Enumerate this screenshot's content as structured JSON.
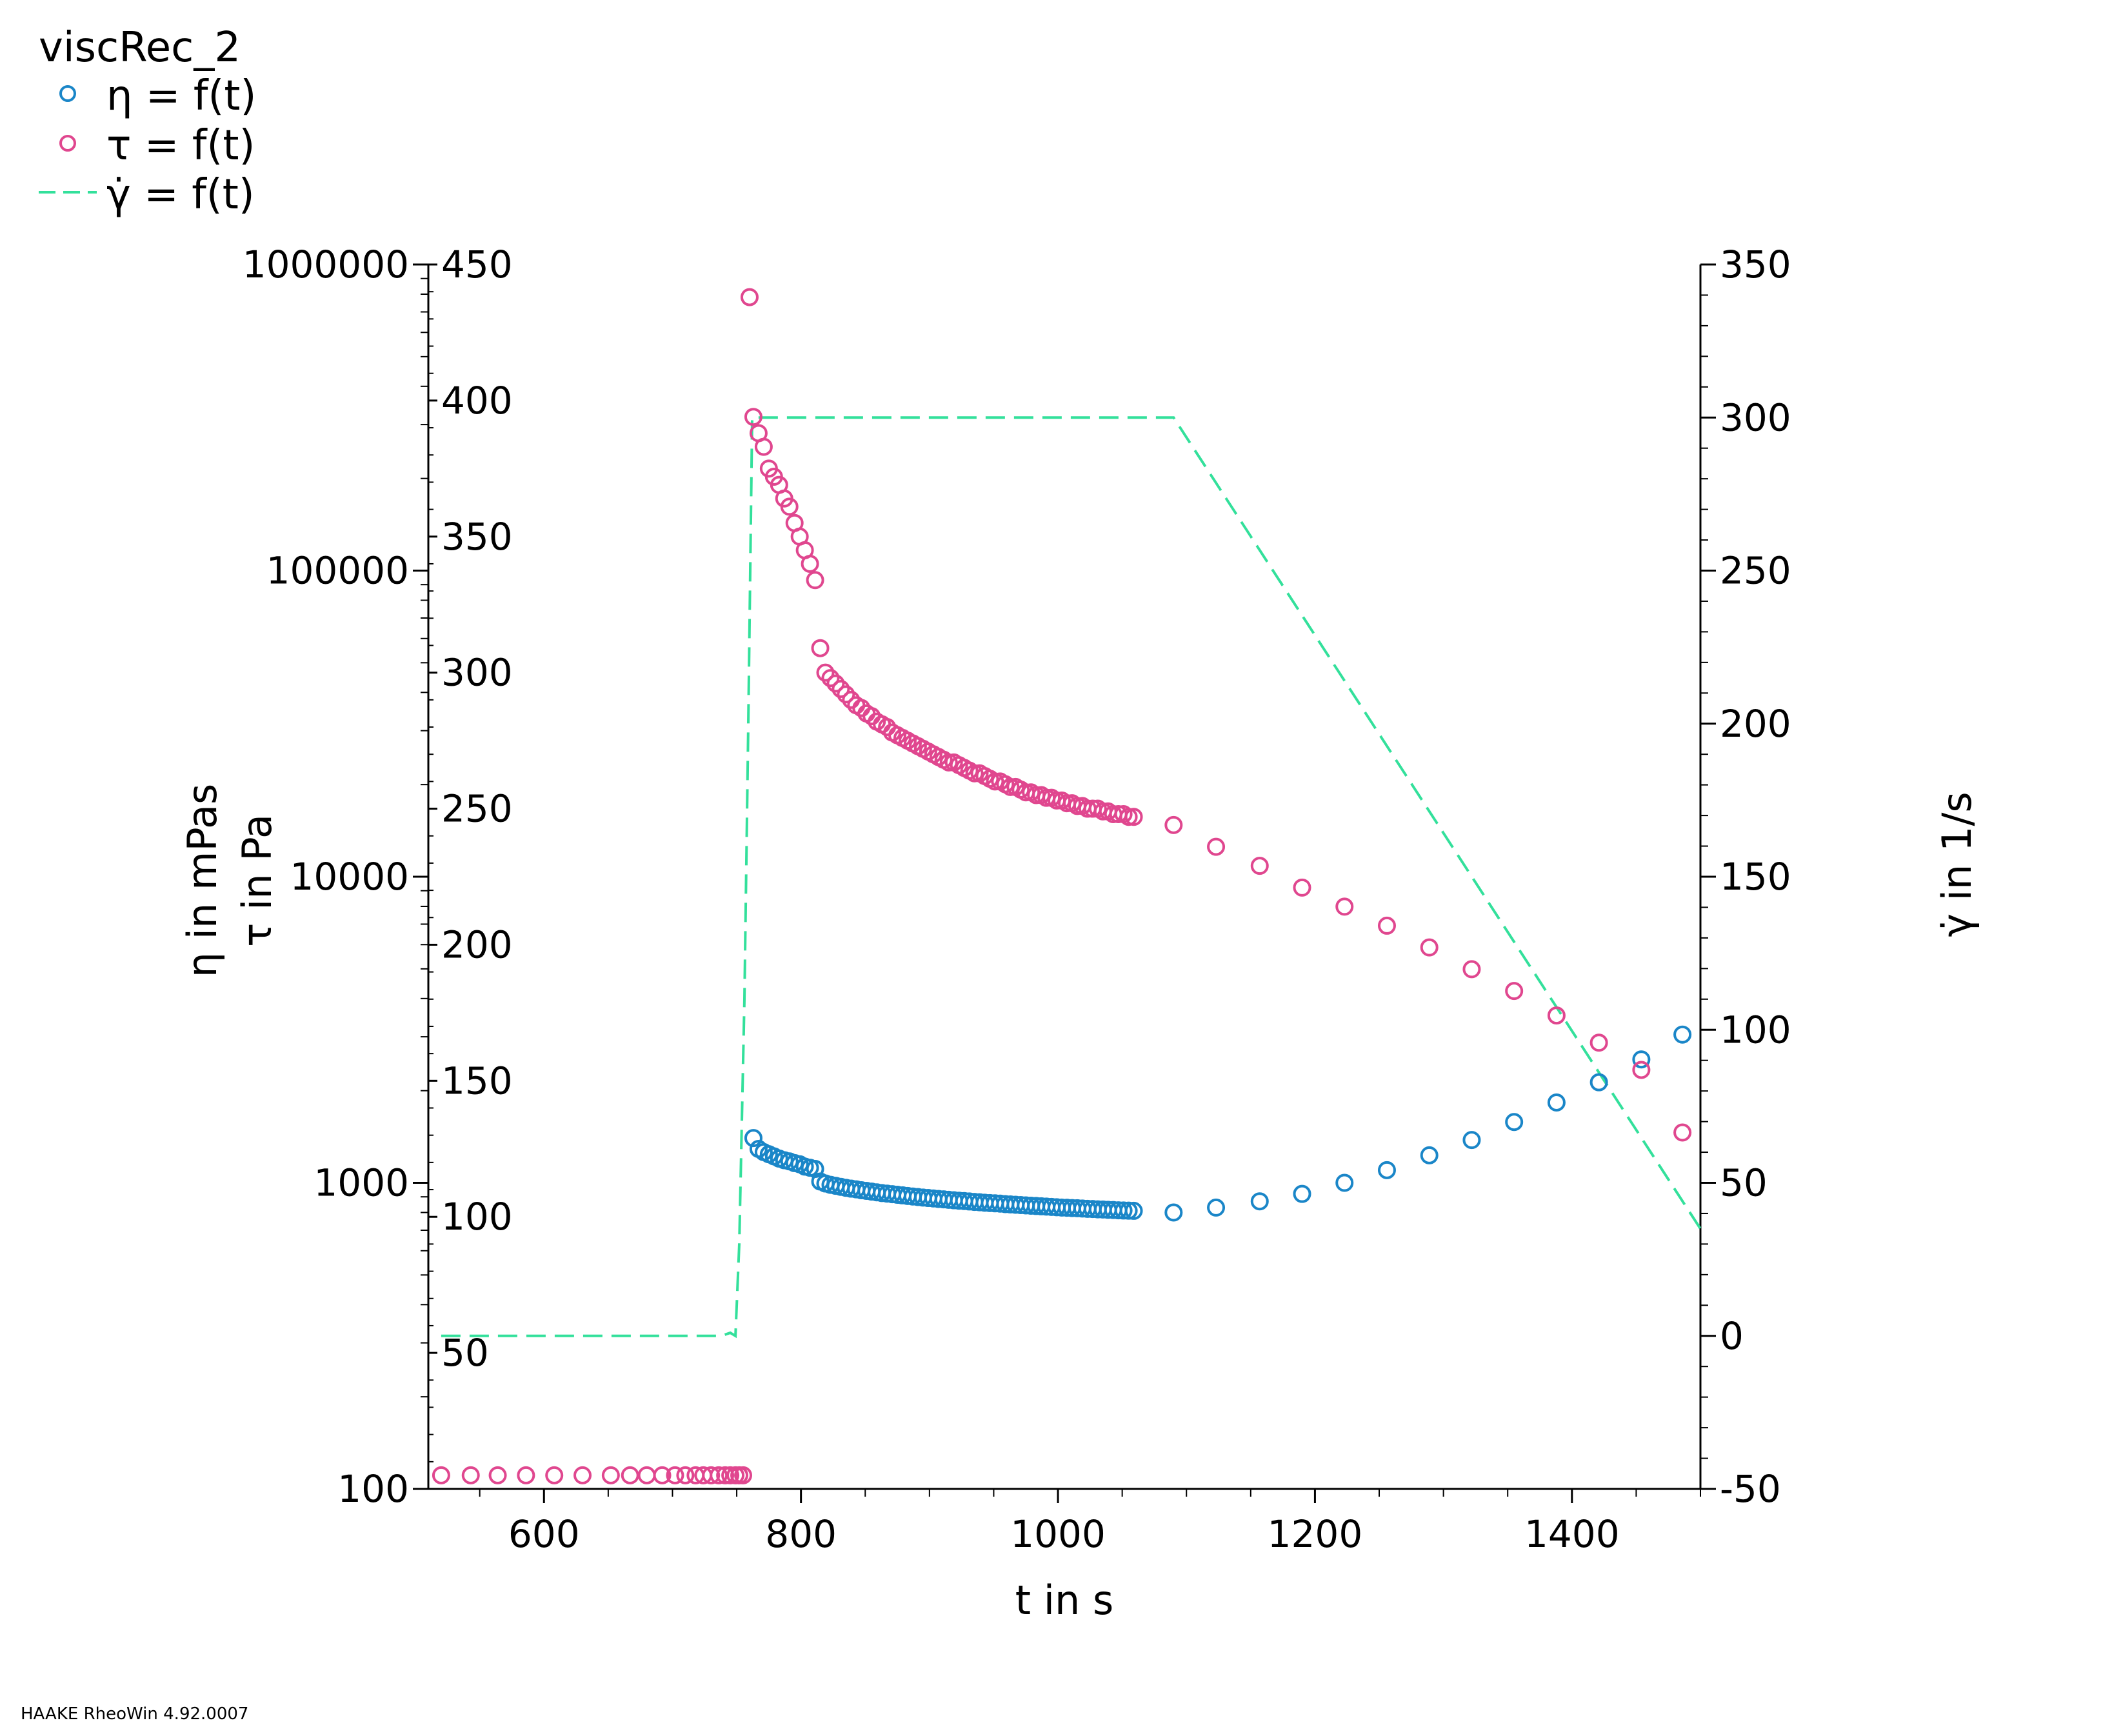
{
  "chart_data": {
    "type": "scatter",
    "title": "viscRec_2",
    "xlabel": "t in s",
    "ylabel_left_outer": "η in mPas",
    "ylabel_left_inner": "τ in Pa",
    "ylabel_right": "γ̇ in 1/s",
    "xlim": [
      510,
      1500
    ],
    "x_ticks": [
      600,
      800,
      1000,
      1200,
      1400
    ],
    "axes": {
      "eta": {
        "scale": "log",
        "range": [
          100,
          1000000
        ],
        "ticks": [
          100,
          1000,
          10000,
          100000,
          1000000
        ]
      },
      "tau": {
        "scale": "linear",
        "range": [
          0,
          450
        ],
        "ticks": [
          50,
          100,
          150,
          200,
          250,
          300,
          350,
          400,
          450
        ]
      },
      "gamma_dot": {
        "scale": "linear",
        "range": [
          -50,
          350
        ],
        "ticks": [
          -50,
          0,
          50,
          100,
          150,
          200,
          250,
          300,
          350
        ]
      }
    },
    "legend_placement": "top-left",
    "grid": false,
    "series": [
      {
        "name": "η = f(t)",
        "axis": "eta",
        "marker": "circle",
        "color": "#1a86c8",
        "x": [
          763,
          767,
          771,
          775,
          779,
          783,
          787,
          791,
          795,
          799,
          803,
          807,
          811,
          815,
          819,
          823,
          827,
          831,
          835,
          839,
          843,
          847,
          851,
          855,
          859,
          863,
          867,
          871,
          875,
          879,
          883,
          887,
          891,
          895,
          899,
          903,
          907,
          911,
          915,
          919,
          923,
          927,
          931,
          935,
          939,
          943,
          947,
          951,
          955,
          959,
          963,
          967,
          971,
          975,
          979,
          983,
          987,
          991,
          995,
          999,
          1003,
          1007,
          1011,
          1015,
          1019,
          1023,
          1027,
          1031,
          1035,
          1039,
          1043,
          1047,
          1051,
          1055,
          1059,
          1090,
          1123,
          1157,
          1190,
          1223,
          1256,
          1289,
          1322,
          1355,
          1388,
          1421,
          1454,
          1486
        ],
        "y": [
          1400,
          1290,
          1260,
          1240,
          1220,
          1200,
          1185,
          1175,
          1160,
          1150,
          1130,
          1120,
          1110,
          1010,
          995,
          985,
          978,
          970,
          963,
          957,
          952,
          946,
          941,
          936,
          931,
          926,
          922,
          918,
          914,
          910,
          906,
          902,
          899,
          895,
          892,
          889,
          886,
          883,
          880,
          877,
          874,
          872,
          869,
          866,
          864,
          861,
          859,
          857,
          855,
          852,
          850,
          848,
          846,
          844,
          842,
          840,
          838,
          836,
          834,
          832,
          830,
          829,
          827,
          826,
          824,
          822,
          821,
          819,
          818,
          816,
          815,
          813,
          812,
          811,
          810,
          800,
          830,
          870,
          920,
          1000,
          1100,
          1230,
          1380,
          1580,
          1830,
          2130,
          2530,
          3050
        ]
      },
      {
        "name": "τ = f(t)",
        "axis": "tau",
        "marker": "circle",
        "color": "#e0478f",
        "x": [
          520,
          543,
          564,
          586,
          608,
          630,
          652,
          667,
          680,
          692,
          702,
          710,
          718,
          724,
          730,
          736,
          741,
          745,
          749,
          752,
          755,
          760,
          763,
          767,
          771,
          775,
          779,
          783,
          787,
          791,
          795,
          799,
          803,
          807,
          811,
          815,
          819,
          823,
          827,
          831,
          835,
          839,
          843,
          847,
          851,
          855,
          859,
          863,
          867,
          871,
          875,
          879,
          883,
          887,
          891,
          895,
          899,
          903,
          907,
          911,
          915,
          919,
          923,
          927,
          931,
          935,
          939,
          943,
          947,
          951,
          955,
          959,
          963,
          967,
          971,
          975,
          979,
          983,
          987,
          991,
          995,
          999,
          1003,
          1007,
          1011,
          1015,
          1019,
          1023,
          1027,
          1031,
          1035,
          1039,
          1043,
          1047,
          1051,
          1055,
          1059,
          1090,
          1123,
          1157,
          1190,
          1223,
          1256,
          1289,
          1322,
          1355,
          1388,
          1421,
          1454,
          1486
        ],
        "y": [
          5,
          5,
          5,
          5,
          5,
          5,
          5,
          5,
          5,
          5,
          5,
          5,
          5,
          5,
          5,
          5,
          5,
          5,
          5,
          5,
          5,
          438,
          394,
          388,
          383,
          375,
          372,
          369,
          364,
          361,
          355,
          350,
          345,
          340,
          334,
          309,
          300,
          298,
          296,
          294,
          292,
          290,
          288,
          287,
          285,
          284,
          282,
          281,
          280,
          278,
          277,
          276,
          275,
          274,
          273,
          272,
          271,
          270,
          269,
          268,
          267,
          267,
          266,
          265,
          264,
          263,
          263,
          262,
          261,
          260,
          260,
          259,
          258,
          258,
          257,
          256,
          256,
          255,
          255,
          254,
          254,
          253,
          253,
          252,
          252,
          251,
          251,
          250,
          250,
          250,
          249,
          249,
          248,
          248,
          248,
          247,
          247,
          244,
          236,
          229,
          221,
          214,
          207,
          199,
          191,
          183,
          174,
          164,
          154,
          131
        ]
      },
      {
        "name": "γ̇ = f(t)",
        "axis": "gamma_dot",
        "line_style": "dashed",
        "color": "#33e09b",
        "x": [
          520,
          738,
          745,
          749,
          752,
          756,
          759,
          762,
          1090,
          1500
        ],
        "y": [
          0,
          0,
          1,
          0,
          30,
          110,
          200,
          300,
          300,
          35
        ]
      }
    ]
  },
  "footer": "HAAKE RheoWin 4.92.0007"
}
